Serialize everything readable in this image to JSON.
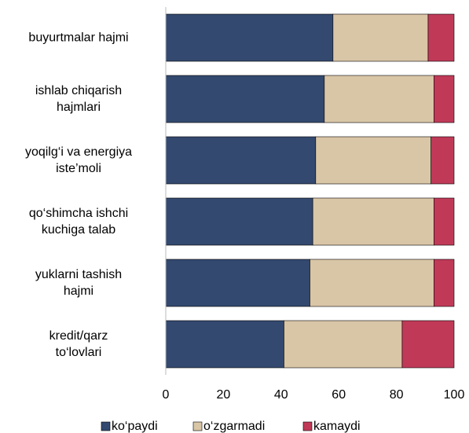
{
  "chart_data": {
    "type": "stacked_barh",
    "categories": [
      "buyurtmalar hajmi",
      "ishlab chiqarish\nhajmlari",
      "yoqilg‘i va energiya\niste’moli",
      "qo‘shimcha ishchi\nkuchiga talab",
      "yuklarni tashish\nhajmi",
      "kredit/qarz\nto‘lovlari"
    ],
    "series": [
      {
        "name": "ko‘paydi",
        "color": "#33496f",
        "values": [
          58,
          55,
          52,
          51,
          50,
          41
        ]
      },
      {
        "name": "o‘zgarmadi",
        "color": "#d9c6a7",
        "values": [
          33,
          38,
          40,
          42,
          43,
          41
        ]
      },
      {
        "name": "kamaydi",
        "color": "#c03a58",
        "values": [
          9,
          7,
          8,
          7,
          7,
          18
        ]
      }
    ],
    "xlim": [
      0,
      100
    ],
    "xticks": [
      0,
      20,
      40,
      60,
      80,
      100
    ],
    "legend": "bottom"
  }
}
